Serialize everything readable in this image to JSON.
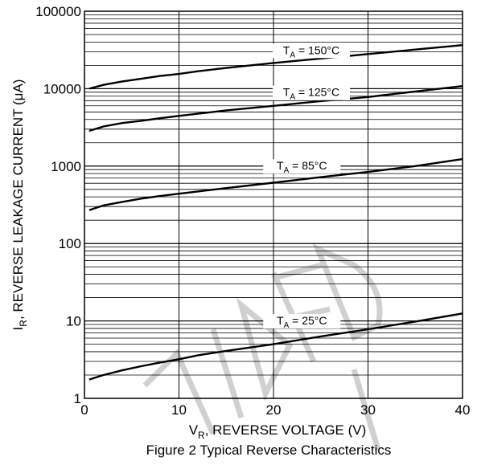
{
  "chart_data": {
    "type": "line",
    "caption": "Figure 2 Typical Reverse Characteristics",
    "xlabel": {
      "symbol": "V",
      "sub": "R",
      "rest": ", REVERSE VOLTAGE (V)"
    },
    "ylabel": {
      "symbol": "I",
      "sub": "R",
      "rest": ", REVERSE LEAKAGE CURRENT (μA)"
    },
    "xlim": [
      0,
      40
    ],
    "ylim": [
      1,
      100000
    ],
    "yscale": "log",
    "grid": true,
    "x_ticks": [
      {
        "v": 0,
        "label": "0"
      },
      {
        "v": 10,
        "label": "10"
      },
      {
        "v": 20,
        "label": "20"
      },
      {
        "v": 30,
        "label": "30"
      },
      {
        "v": 40,
        "label": "40"
      }
    ],
    "y_ticks": [
      {
        "v": 1,
        "label": "1"
      },
      {
        "v": 10,
        "label": "10"
      },
      {
        "v": 100,
        "label": "100"
      },
      {
        "v": 1000,
        "label": "1000"
      },
      {
        "v": 10000,
        "label": "10000"
      },
      {
        "v": 100000,
        "label": "100000"
      }
    ],
    "series": [
      {
        "name": "150°C",
        "label_prefix": "T",
        "label_sub": "A",
        "label_text": " = 150°C",
        "label_at": [
          24,
          28000
        ],
        "x": [
          0.5,
          2,
          4,
          6,
          8,
          10,
          12,
          15,
          20,
          25,
          30,
          35,
          40
        ],
        "y": [
          10000,
          11200,
          12400,
          13400,
          14600,
          15500,
          16800,
          18500,
          21500,
          24500,
          28000,
          32000,
          36500
        ]
      },
      {
        "name": "125°C",
        "label_prefix": "T",
        "label_sub": "A",
        "label_text": " = 125°C",
        "label_at": [
          24,
          8000
        ],
        "x": [
          0.5,
          2,
          4,
          6,
          8,
          10,
          12,
          15,
          20,
          25,
          30,
          35,
          40
        ],
        "y": [
          2850,
          3250,
          3600,
          3850,
          4150,
          4450,
          4750,
          5250,
          6000,
          6900,
          7800,
          9200,
          10800
        ]
      },
      {
        "name": "85°C",
        "label_prefix": "T",
        "label_sub": "A",
        "label_text": " = 85°C",
        "label_at": [
          23,
          900
        ],
        "x": [
          0.5,
          2,
          4,
          6,
          8,
          10,
          12,
          15,
          20,
          25,
          30,
          35,
          40
        ],
        "y": [
          270,
          310,
          345,
          380,
          410,
          440,
          470,
          520,
          610,
          720,
          840,
          1000,
          1230
        ]
      },
      {
        "name": "25°C",
        "label_prefix": "T",
        "label_sub": "A",
        "label_text": " = 25°C",
        "label_at": [
          23,
          9
        ],
        "x": [
          0.5,
          2,
          4,
          6,
          8,
          10,
          12,
          15,
          20,
          25,
          30,
          35,
          40
        ],
        "y": [
          1.75,
          2.0,
          2.3,
          2.6,
          2.9,
          3.2,
          3.6,
          4.1,
          5.0,
          6.3,
          7.8,
          9.8,
          12.5
        ]
      }
    ]
  }
}
